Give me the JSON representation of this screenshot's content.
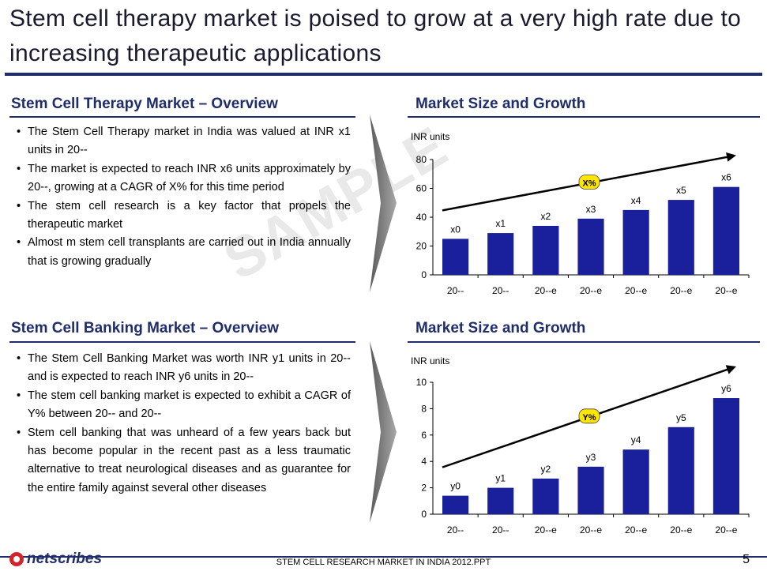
{
  "slide": {
    "title": "Stem cell therapy market is poised to grow at a very high rate due to increasing therapeutic applications",
    "watermark": "SAMPLE",
    "footer": "STEM CELL  RESEARCH MARKET IN INDIA 2012.PPT",
    "page_number": "5",
    "logo_text": "netscribes",
    "accent_color": "#1f2d6b",
    "bar_color": "#1a1f9c"
  },
  "therapy": {
    "heading": "Stem Cell Therapy Market – Overview",
    "bullets": [
      "The Stem Cell Therapy market in India was valued at INR x1 units in 20--",
      "The market is expected to reach INR x6 units approximately by 20--, growing  at a CAGR of X% for this time period",
      "The stem cell research is a key factor that propels the therapeutic market",
      "Almost m stem cell transplants are carried out in India annually that is growing gradually"
    ],
    "chart_heading": "Market Size and Growth"
  },
  "banking": {
    "heading": "Stem Cell Banking Market – Overview",
    "bullets": [
      "The Stem Cell Banking Market was worth INR y1 units in 20-- and is expected to reach INR y6 units in 20--",
      "The stem cell banking market is expected to exhibit a CAGR of Y% between 20-- and 20--",
      "Stem cell banking that was unheard of a few years back but has become popular in the recent past as a less traumatic alternative to treat neurological diseases and as guarantee for the entire family against several other diseases"
    ],
    "chart_heading": "Market Size and Growth"
  },
  "chart_data": [
    {
      "type": "bar",
      "ylabel": "INR units",
      "categories": [
        "20--",
        "20--",
        "20--e",
        "20--e",
        "20--e",
        "20--e",
        "20--e"
      ],
      "values": [
        25,
        29,
        34,
        39,
        45,
        52,
        61
      ],
      "data_labels": [
        "x0",
        "x1",
        "x2",
        "x3",
        "x4",
        "x5",
        "x6"
      ],
      "ylim": [
        0,
        80
      ],
      "yticks": [
        0,
        20,
        40,
        60,
        80
      ],
      "annotation": "X%",
      "trend_arrow": true
    },
    {
      "type": "bar",
      "ylabel": "INR units",
      "categories": [
        "20--",
        "20--",
        "20--e",
        "20--e",
        "20--e",
        "20--e",
        "20--e"
      ],
      "values": [
        1.4,
        2.0,
        2.7,
        3.6,
        4.9,
        6.6,
        8.8
      ],
      "data_labels": [
        "y0",
        "y1",
        "y2",
        "y3",
        "y4",
        "y5",
        "y6"
      ],
      "ylim": [
        0,
        10
      ],
      "yticks": [
        0,
        2,
        4,
        6,
        8,
        10
      ],
      "annotation": "Y%",
      "trend_arrow": true
    }
  ]
}
